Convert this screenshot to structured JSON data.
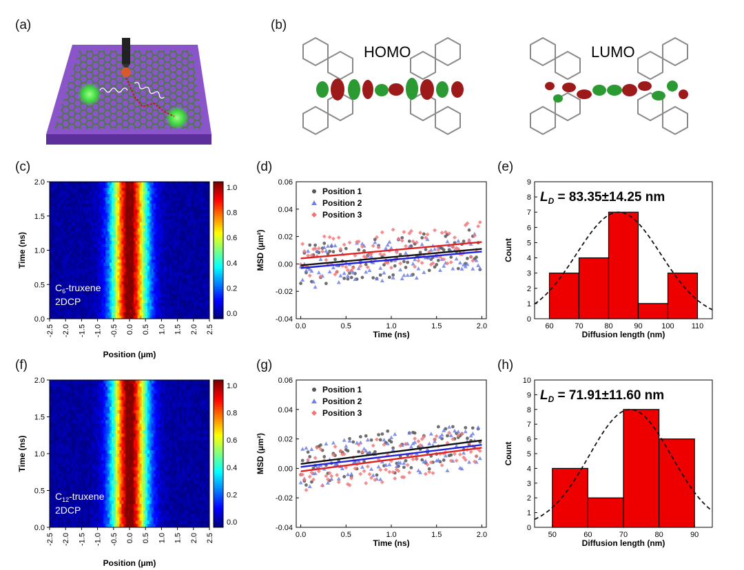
{
  "panels": {
    "a": "(a)",
    "b": "(b)",
    "c": "(c)",
    "d": "(d)",
    "e": "(e)",
    "f": "(f)",
    "g": "(g)",
    "h": "(h)"
  },
  "orbitals": {
    "homo": "HOMO",
    "lumo": "LUMO"
  },
  "colors": {
    "substrate": "#8a55c8",
    "lattice": "#5fa73b",
    "exciton": "#4ee04a",
    "lobe_red": "#9c1a1a",
    "lobe_green": "#2c9a33",
    "bar": "#ee0000",
    "s1": "#555555",
    "s2": "#6f7fe8",
    "s3": "#f07a7a",
    "fit1": "#111111",
    "fit2": "#2020e0",
    "fit3": "#e02020"
  },
  "chart_data": [
    {
      "id": "c",
      "type": "heatmap",
      "xlabel": "Position (μm)",
      "ylabel": "Time (ns)",
      "xlim": [
        -2.5,
        2.5
      ],
      "ylim": [
        0,
        2.0
      ],
      "xticks": [
        "-2.5",
        "-2.0",
        "-1.5",
        "-1.0",
        "-0.5",
        "0.0",
        "0.5",
        "1.0",
        "1.5",
        "2.0",
        "2.5"
      ],
      "yticks": [
        "0.0",
        "0.5",
        "1.0",
        "1.5",
        "2.0"
      ],
      "colorbar_ticks": [
        "0.0",
        "0.2",
        "0.4",
        "0.6",
        "0.8",
        "1.0"
      ],
      "annotation_sub": "6",
      "annotation_prefix": "C",
      "annotation_suffix": "-truxene",
      "annotation_line2": "2DCP"
    },
    {
      "id": "d",
      "type": "scatter",
      "xlabel": "Time (ns)",
      "ylabel": "MSD (μm²)",
      "xlim": [
        0,
        2.0
      ],
      "ylim": [
        -0.04,
        0.06
      ],
      "xticks": [
        "0.0",
        "0.5",
        "1.0",
        "1.5",
        "2.0"
      ],
      "yticks": [
        "-0.04",
        "-0.02",
        "0.00",
        "0.02",
        "0.04",
        "0.06"
      ],
      "series": [
        {
          "name": "Position 1",
          "fit": [
            [
              0,
              -0.001
            ],
            [
              2.0,
              0.011
            ]
          ]
        },
        {
          "name": "Position 2",
          "fit": [
            [
              0,
              -0.003
            ],
            [
              2.0,
              0.009
            ]
          ]
        },
        {
          "name": "Position 3",
          "fit": [
            [
              0,
              0.004
            ],
            [
              2.0,
              0.016
            ]
          ]
        }
      ]
    },
    {
      "id": "e",
      "type": "bar",
      "xlabel": "Diffusion length (nm)",
      "ylabel": "Count",
      "xlim": [
        55,
        115
      ],
      "ylim": [
        0,
        9
      ],
      "xticks": [
        "60",
        "70",
        "80",
        "90",
        "100",
        "110"
      ],
      "yticks": [
        "0",
        "1",
        "2",
        "3",
        "4",
        "5",
        "6",
        "7",
        "8",
        "9"
      ],
      "bins": [
        [
          60,
          70
        ],
        [
          70,
          80
        ],
        [
          80,
          90
        ],
        [
          90,
          100
        ],
        [
          100,
          110
        ]
      ],
      "values": [
        3,
        4,
        7,
        1,
        3
      ],
      "gauss": {
        "mu": 83.35,
        "sigma": 14.25,
        "peak": 7
      },
      "ld_value": "= 83.35±14.25  nm"
    },
    {
      "id": "f",
      "type": "heatmap",
      "xlabel": "Position (μm)",
      "ylabel": "Time (ns)",
      "xlim": [
        -2.5,
        2.5
      ],
      "ylim": [
        0,
        2.0
      ],
      "xticks": [
        "-2.5",
        "-2.0",
        "-1.5",
        "-1.0",
        "-0.5",
        "0.0",
        "0.5",
        "1.0",
        "1.5",
        "2.0",
        "2.5"
      ],
      "yticks": [
        "0.0",
        "0.5",
        "1.0",
        "1.5",
        "2.0"
      ],
      "colorbar_ticks": [
        "0.0",
        "0.2",
        "0.4",
        "0.6",
        "0.8",
        "1.0"
      ],
      "annotation_sub": "12",
      "annotation_prefix": "C",
      "annotation_suffix": "-truxene",
      "annotation_line2": "2DCP"
    },
    {
      "id": "g",
      "type": "scatter",
      "xlabel": "Time (ns)",
      "ylabel": "MSD (μm²)",
      "xlim": [
        0,
        2.0
      ],
      "ylim": [
        -0.04,
        0.06
      ],
      "xticks": [
        "0.0",
        "0.5",
        "1.0",
        "1.5",
        "2.0"
      ],
      "yticks": [
        "-0.04",
        "-0.02",
        "0.00",
        "0.02",
        "0.04",
        "0.06"
      ],
      "series": [
        {
          "name": "Position 1",
          "fit": [
            [
              0,
              0.003
            ],
            [
              2.0,
              0.019
            ]
          ]
        },
        {
          "name": "Position 2",
          "fit": [
            [
              0,
              0.001
            ],
            [
              2.0,
              0.016
            ]
          ]
        },
        {
          "name": "Position 3",
          "fit": [
            [
              0,
              -0.002
            ],
            [
              2.0,
              0.014
            ]
          ]
        }
      ]
    },
    {
      "id": "h",
      "type": "bar",
      "xlabel": "Diffusion length (nm)",
      "ylabel": "Count",
      "xlim": [
        45,
        95
      ],
      "ylim": [
        0,
        10
      ],
      "xticks": [
        "50",
        "60",
        "70",
        "80",
        "90"
      ],
      "yticks": [
        "0",
        "1",
        "2",
        "3",
        "4",
        "5",
        "6",
        "7",
        "8",
        "9",
        "10"
      ],
      "bins": [
        [
          50,
          60
        ],
        [
          60,
          70
        ],
        [
          70,
          80
        ],
        [
          80,
          90
        ]
      ],
      "values": [
        4,
        2,
        8,
        6
      ],
      "gauss": {
        "mu": 71.91,
        "sigma": 11.6,
        "peak": 8
      },
      "ld_value": "= 71.91±11.60  nm"
    }
  ]
}
